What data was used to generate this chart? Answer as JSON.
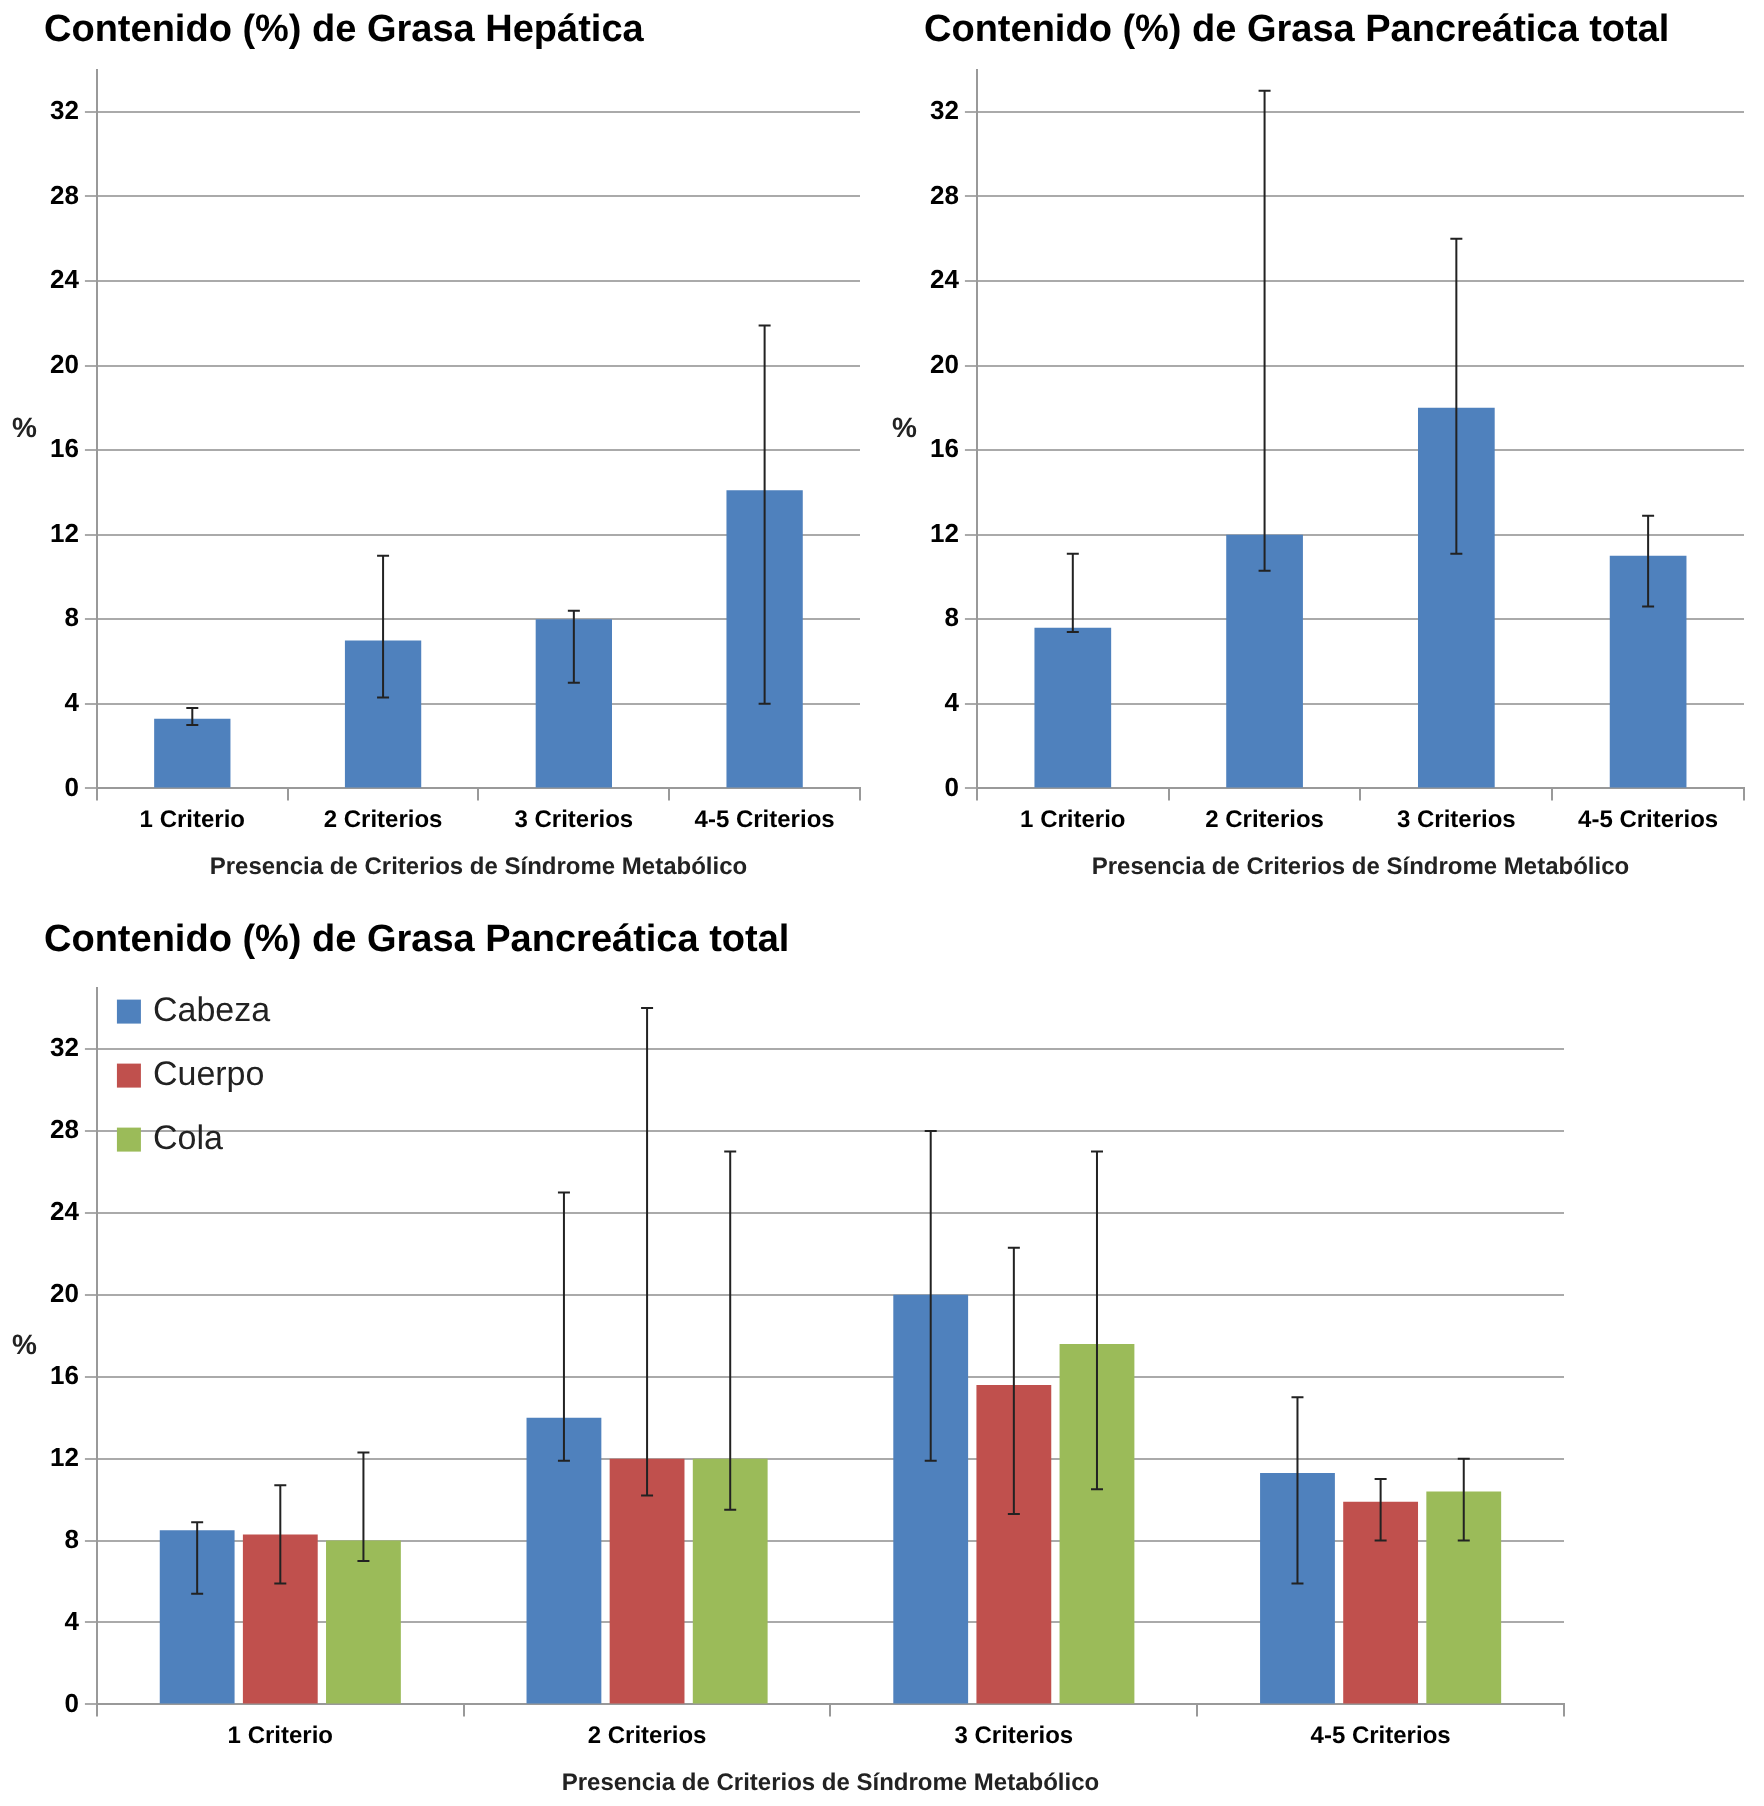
{
  "chart_data": [
    {
      "type": "bar",
      "title": "Contenido (%) de Grasa Hepática",
      "xlabel": "Presencia de Criterios de Síndrome Metabólico",
      "ylabel": "%",
      "categories": [
        "1 Criterio",
        "2 Criterios",
        "3 Criterios",
        "4-5 Criterios"
      ],
      "series": [
        {
          "color": "#4f81bd",
          "values": [
            3.3,
            7,
            8,
            14.1
          ],
          "errors": [
            [
              3.0,
              3.8
            ],
            [
              4.3,
              11
            ],
            [
              5.0,
              8.4
            ],
            [
              4.0,
              21.9
            ]
          ]
        }
      ],
      "ylim": [
        0,
        34
      ],
      "yticks": [
        0,
        4,
        8,
        12,
        16,
        20,
        24,
        28,
        32
      ],
      "grid": "y",
      "legend": false
    },
    {
      "type": "bar",
      "title": "Contenido (%) de Grasa Pancreática total",
      "xlabel": "Presencia de Criterios de Síndrome Metabólico",
      "ylabel": "%",
      "categories": [
        "1 Criterio",
        "2 Criterios",
        "3 Criterios",
        "4-5 Criterios"
      ],
      "series": [
        {
          "color": "#4f81bd",
          "values": [
            7.6,
            12,
            18,
            11
          ],
          "errors": [
            [
              7.4,
              11.1
            ],
            [
              10.3,
              33
            ],
            [
              11.1,
              26
            ],
            [
              8.6,
              12.9
            ]
          ]
        }
      ],
      "ylim": [
        0,
        34
      ],
      "yticks": [
        0,
        4,
        8,
        12,
        16,
        20,
        24,
        28,
        32
      ],
      "grid": "y",
      "legend": false
    },
    {
      "type": "bar",
      "title": "Contenido (%) de Grasa Pancreática total",
      "xlabel": "Presencia de Criterios de Síndrome Metabólico",
      "ylabel": "%",
      "categories": [
        "1 Criterio",
        "2 Criterios",
        "3 Criterios",
        "4-5 Criterios"
      ],
      "series": [
        {
          "name": "Cabeza",
          "color": "#4f81bd",
          "values": [
            8.5,
            14,
            20,
            11.3
          ],
          "errors": [
            [
              5.4,
              8.9
            ],
            [
              11.9,
              25
            ],
            [
              11.9,
              28
            ],
            [
              5.9,
              15
            ]
          ]
        },
        {
          "name": "Cuerpo",
          "color": "#c0504d",
          "values": [
            8.3,
            12,
            15.6,
            9.9
          ],
          "errors": [
            [
              5.9,
              10.7
            ],
            [
              10.2,
              34
            ],
            [
              9.3,
              22.3
            ],
            [
              8.0,
              11
            ]
          ]
        },
        {
          "name": "Cola",
          "color": "#9bbb59",
          "values": [
            8.0,
            12,
            17.6,
            10.4
          ],
          "errors": [
            [
              7.0,
              12.3
            ],
            [
              9.5,
              27
            ],
            [
              10.5,
              27
            ],
            [
              8.0,
              12
            ]
          ]
        }
      ],
      "ylim": [
        0,
        35
      ],
      "yticks": [
        0,
        4,
        8,
        12,
        16,
        20,
        24,
        28,
        32
      ],
      "grid": "y",
      "legend": "top left"
    }
  ]
}
